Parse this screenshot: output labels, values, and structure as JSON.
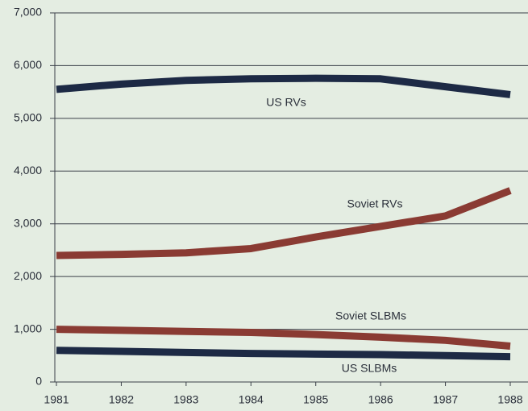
{
  "chart_data": {
    "type": "line",
    "categories": [
      "1981",
      "1982",
      "1983",
      "1984",
      "1985",
      "1986",
      "1987",
      "1988"
    ],
    "series": [
      {
        "name": "US RVs",
        "color": "#1d2a45",
        "values": [
          5550,
          5650,
          5720,
          5750,
          5760,
          5750,
          5600,
          5450
        ]
      },
      {
        "name": "Soviet RVs",
        "color": "#8a3b33",
        "values": [
          2400,
          2420,
          2450,
          2530,
          2750,
          2950,
          3150,
          3630
        ]
      },
      {
        "name": "Soviet SLBMs",
        "color": "#8a3b33",
        "values": [
          1000,
          980,
          960,
          940,
          900,
          850,
          790,
          680
        ]
      },
      {
        "name": "US SLBMs",
        "color": "#1d2a45",
        "values": [
          600,
          580,
          560,
          540,
          530,
          520,
          500,
          480
        ]
      }
    ],
    "ylim": [
      0,
      7000
    ],
    "yticks": [
      0,
      {
        "value": 1000,
        "label": "1,000"
      },
      {
        "value": 2000,
        "label": "2,000"
      },
      {
        "value": 3000,
        "label": "3,000"
      },
      {
        "value": 4000,
        "label": "4,000"
      },
      {
        "value": 5000,
        "label": "5,000"
      },
      {
        "value": 6000,
        "label": "6,000"
      },
      {
        "value": 7000,
        "label": "7,000"
      }
    ],
    "grid": true
  }
}
